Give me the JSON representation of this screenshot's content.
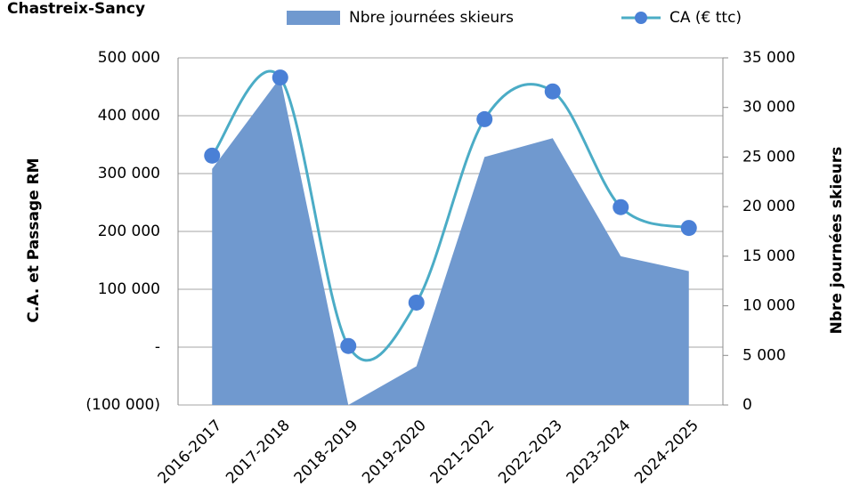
{
  "chart_data": {
    "type": "combo",
    "title": "Chastreix-Sancy",
    "categories": [
      "2016-2017",
      "2017-2018",
      "2018-2019",
      "2019-2020",
      "2021-2022",
      "2022-2023",
      "2023-2024",
      "2024-2025"
    ],
    "series": [
      {
        "name": "Nbre journées skieurs",
        "type": "area",
        "axis": "y2",
        "color": "#7099cf",
        "values": [
          23800,
          33000,
          0,
          3900,
          25000,
          26900,
          15000,
          13500
        ]
      },
      {
        "name": "CA (€ ttc)",
        "type": "line",
        "color": "#4bacc6",
        "marker_color": "#4a80d6",
        "values": [
          331000,
          466000,
          2000,
          77000,
          394000,
          442000,
          242000,
          206000
        ]
      }
    ],
    "y_label": "C.A. et Passage RM",
    "y2_label": "Nbre journées skieurs",
    "ylim": [
      -100000,
      500000
    ],
    "yticks": [
      {
        "value": -100000,
        "label": "(100 000)"
      },
      {
        "value": 0,
        "label": "-"
      },
      {
        "value": 100000,
        "label": "100 000"
      },
      {
        "value": 200000,
        "label": "200 000"
      },
      {
        "value": 300000,
        "label": "300 000"
      },
      {
        "value": 400000,
        "label": "400 000"
      },
      {
        "value": 500000,
        "label": "500 000"
      }
    ],
    "y2lim": [
      0,
      35000
    ],
    "y2ticks": [
      0,
      {
        "value": 5000,
        "label": "5 000"
      },
      {
        "value": 10000,
        "label": "10 000"
      },
      {
        "value": 15000,
        "label": "15 000"
      },
      {
        "value": 20000,
        "label": "20 000"
      },
      {
        "value": 25000,
        "label": "25 000"
      },
      {
        "value": 30000,
        "label": "30 000"
      },
      {
        "value": 35000,
        "label": "35 000"
      }
    ],
    "y2_color": "#3a9fb5",
    "grid": true
  }
}
